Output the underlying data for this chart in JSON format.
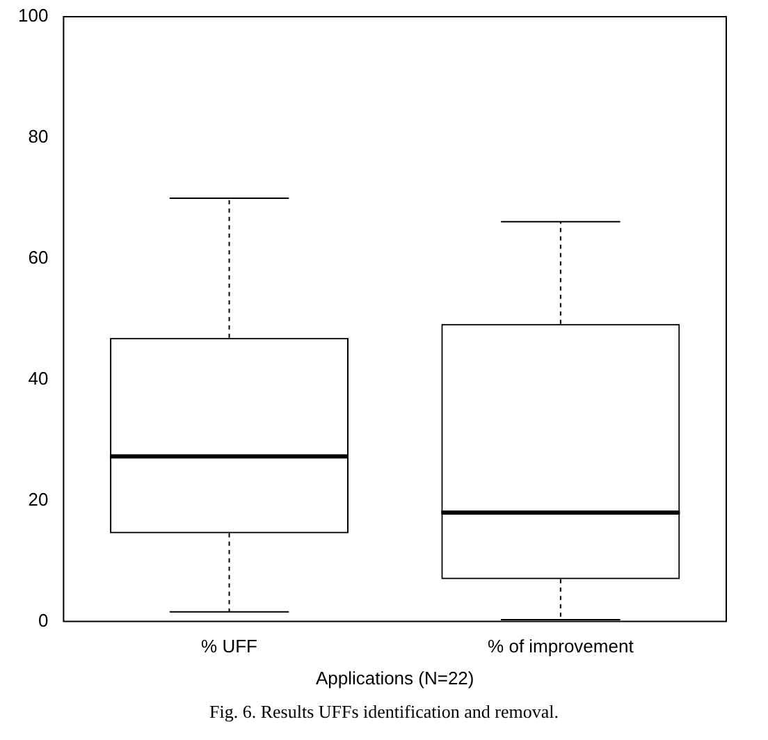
{
  "chart_data": {
    "type": "box",
    "xlabel": "Applications (N=22)",
    "categories": [
      "% UFF",
      "% of improvement"
    ],
    "boxes": [
      {
        "low": 1.6,
        "q1": 14.6,
        "median": 27.3,
        "q3": 46.9,
        "high": 70
      },
      {
        "low": 0.3,
        "q1": 7,
        "median": 18,
        "q3": 49.2,
        "high": 66.1
      }
    ],
    "color": "#000000",
    "ylim": [
      0,
      100
    ],
    "yticks": [
      0,
      20,
      40,
      60,
      80,
      100
    ],
    "grid": false,
    "legend": false,
    "annotations": [
      "Fig. 6. Results UFFs identification and removal."
    ]
  }
}
